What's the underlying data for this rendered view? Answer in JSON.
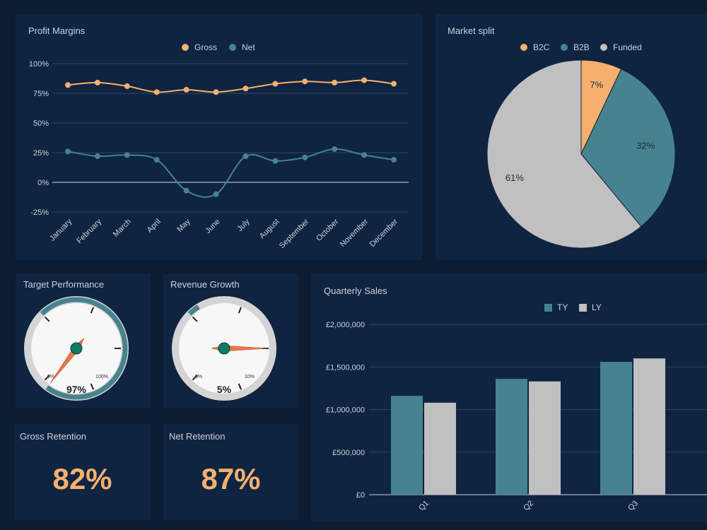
{
  "colors": {
    "background": "#0b1c33",
    "panel": "#0f2440",
    "orange": "#f5b06e",
    "teal": "#47828f",
    "grey": "#c0c0c0",
    "needle": "#e8784c",
    "hub": "#0f7a62"
  },
  "profit_margins": {
    "title": "Profit Margins",
    "chart_data": {
      "type": "line",
      "categories": [
        "January",
        "February",
        "March",
        "April",
        "May",
        "June",
        "July",
        "August",
        "September",
        "October",
        "November",
        "December"
      ],
      "series": [
        {
          "name": "Gross",
          "values": [
            82,
            84,
            81,
            76,
            78,
            76,
            79,
            83,
            85,
            84,
            86,
            83
          ]
        },
        {
          "name": "Net",
          "values": [
            26,
            22,
            23,
            19,
            -7,
            -10,
            22,
            18,
            21,
            28,
            23,
            19
          ]
        }
      ],
      "y_ticks": [
        "100%",
        "75%",
        "50%",
        "25%",
        "0%",
        "-25%"
      ],
      "ylim": [
        -25,
        100
      ],
      "legend_position": "top"
    }
  },
  "market_split": {
    "title": "Market split",
    "chart_data": {
      "type": "pie",
      "labels": [
        "B2C",
        "B2B",
        "Funded"
      ],
      "values": [
        7,
        32,
        61
      ],
      "data_labels": [
        "7%",
        "32%",
        "61%"
      ],
      "legend_position": "top"
    }
  },
  "target_performance": {
    "title": "Target Performance",
    "value_label": "97%",
    "value": 97,
    "min_label": "0%",
    "max_label": "100%"
  },
  "revenue_growth": {
    "title": "Revenue Growth",
    "value_label": "5%",
    "value": 5,
    "min_label": "0%",
    "max_label": "10%"
  },
  "gross_retention": {
    "title": "Gross Retention",
    "value": "82%"
  },
  "net_retention": {
    "title": "Net Retention",
    "value": "87%"
  },
  "quarterly_sales": {
    "title": "Quarterly Sales",
    "chart_data": {
      "type": "bar",
      "categories": [
        "Q1",
        "Q2",
        "Q3"
      ],
      "series": [
        {
          "name": "TY",
          "values": [
            1160000,
            1360000,
            1560000
          ]
        },
        {
          "name": "LY",
          "values": [
            1080000,
            1330000,
            1600000
          ]
        }
      ],
      "y_ticks": [
        "£2,000,000",
        "£1,500,000",
        "£1,000,000",
        "£500,000",
        "£0"
      ],
      "ylim": [
        0,
        2000000
      ],
      "legend_position": "top"
    }
  }
}
